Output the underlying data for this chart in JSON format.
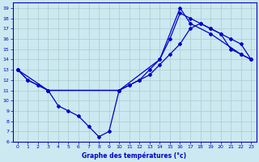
{
  "xlabel": "Graphe des températures (°c)",
  "xlim": [
    -0.5,
    23.5
  ],
  "ylim": [
    6,
    19.5
  ],
  "yticks": [
    6,
    7,
    8,
    9,
    10,
    11,
    12,
    13,
    14,
    15,
    16,
    17,
    18,
    19
  ],
  "xticks": [
    0,
    1,
    2,
    3,
    4,
    5,
    6,
    7,
    8,
    9,
    10,
    11,
    12,
    13,
    14,
    15,
    16,
    17,
    18,
    19,
    20,
    21,
    22,
    23
  ],
  "bg_color": "#cce8f0",
  "grid_color": "#aacccc",
  "line_color": "#0000cc",
  "line1_x": [
    0,
    1,
    2,
    3,
    4,
    5,
    6,
    7,
    8,
    9,
    10,
    11,
    12,
    13,
    14,
    15,
    16,
    17,
    18,
    19,
    20,
    21,
    22,
    23
  ],
  "line1_y": [
    13,
    12,
    11.5,
    11,
    9.5,
    9,
    8.5,
    7.5,
    6.5,
    7,
    11,
    11.5,
    12,
    13,
    14,
    16,
    18.5,
    18,
    17.5,
    17,
    16.5,
    16,
    15.5,
    14
  ],
  "line2_x": [
    0,
    3,
    10,
    14,
    16,
    17,
    19,
    22,
    23
  ],
  "line2_y": [
    13,
    11,
    11,
    14,
    19,
    17.5,
    16.5,
    14.5,
    14
  ],
  "line3_x": [
    0,
    1,
    2,
    3,
    10,
    11,
    12,
    13,
    14,
    15,
    16,
    17,
    18,
    19,
    20,
    21,
    22,
    23
  ],
  "line3_y": [
    13,
    12,
    11.5,
    11,
    11,
    11.5,
    12,
    12.5,
    13.5,
    14.5,
    15.5,
    17,
    17.5,
    17,
    16.5,
    15,
    14.5,
    14
  ]
}
